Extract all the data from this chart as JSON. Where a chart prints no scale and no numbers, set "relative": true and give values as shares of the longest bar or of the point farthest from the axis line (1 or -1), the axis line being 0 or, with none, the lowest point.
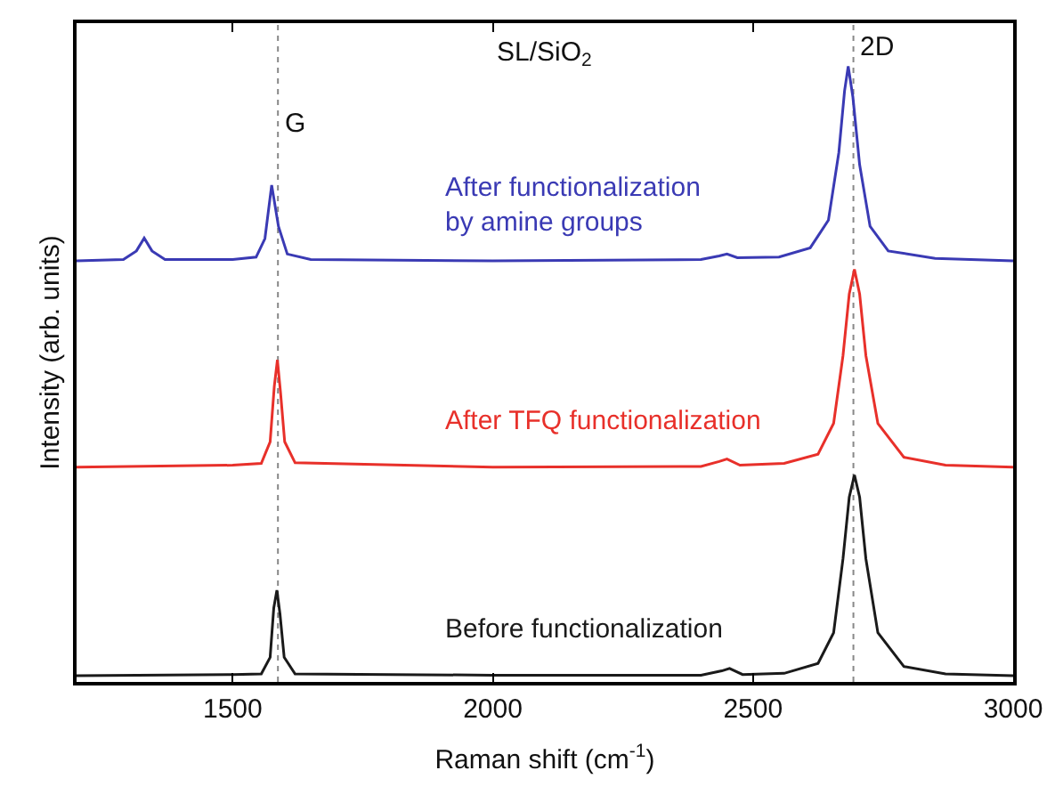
{
  "chart_data": {
    "type": "line",
    "relative": true,
    "xlabel": "Raman shift (cm$^{-1}$)",
    "ylabel": "Intensity (arb. units)",
    "xlim": [
      1200,
      3000
    ],
    "xticks": [
      1500,
      2000,
      2500,
      3000
    ],
    "grid": false,
    "legend": false,
    "marker": "none",
    "line_style": "solid",
    "annotations": [
      "SL/SiO$_{2}$",
      {
        "text": "G",
        "x": 1587,
        "y": 0.876
      },
      {
        "text": "2D",
        "x": 2693,
        "y": 1.0
      }
    ],
    "ref_lines": [
      {
        "axis": "x",
        "value": 1587,
        "color": "#888888",
        "line_style": "dotted"
      },
      {
        "axis": "x",
        "value": 2693,
        "color": "#888888",
        "line_style": "dotted"
      }
    ],
    "series": [
      {
        "name": "After functionalization\nby amine groups",
        "color": "#3a3ab4",
        "x": [
          1200,
          1290,
          1315,
          1330,
          1345,
          1370,
          1500,
          1545,
          1562,
          1575,
          1588,
          1605,
          1650,
          2000,
          2400,
          2435,
          2450,
          2470,
          2550,
          2610,
          2645,
          2665,
          2676,
          2683,
          2692,
          2705,
          2725,
          2760,
          2850,
          3000
        ],
        "values": [
          0.684,
          0.686,
          0.7,
          0.721,
          0.7,
          0.686,
          0.686,
          0.69,
          0.72,
          0.807,
          0.74,
          0.695,
          0.686,
          0.684,
          0.686,
          0.692,
          0.695,
          0.689,
          0.69,
          0.705,
          0.75,
          0.86,
          0.96,
          1.0,
          0.95,
          0.84,
          0.74,
          0.7,
          0.688,
          0.684
        ]
      },
      {
        "name": "After TFQ functionalization",
        "color": "#e8302a",
        "x": [
          1200,
          1500,
          1555,
          1572,
          1580,
          1586,
          1592,
          1600,
          1620,
          2000,
          2400,
          2435,
          2450,
          2475,
          2560,
          2625,
          2655,
          2673,
          2685,
          2695,
          2705,
          2717,
          2740,
          2790,
          2870,
          3000
        ],
        "values": [
          0.349,
          0.352,
          0.355,
          0.39,
          0.48,
          0.523,
          0.47,
          0.39,
          0.356,
          0.349,
          0.35,
          0.358,
          0.362,
          0.352,
          0.355,
          0.37,
          0.42,
          0.53,
          0.63,
          0.67,
          0.63,
          0.53,
          0.42,
          0.365,
          0.352,
          0.349
        ]
      },
      {
        "name": "Before functionalization",
        "color": "#1a1a1a",
        "x": [
          1200,
          1500,
          1555,
          1572,
          1579,
          1585,
          1591,
          1599,
          1620,
          2000,
          2400,
          2440,
          2455,
          2480,
          2560,
          2625,
          2655,
          2673,
          2685,
          2695,
          2705,
          2717,
          2740,
          2790,
          2870,
          3000
        ],
        "values": [
          0.01,
          0.012,
          0.013,
          0.04,
          0.12,
          0.149,
          0.11,
          0.04,
          0.013,
          0.011,
          0.011,
          0.018,
          0.022,
          0.012,
          0.014,
          0.03,
          0.08,
          0.2,
          0.3,
          0.336,
          0.3,
          0.2,
          0.08,
          0.025,
          0.013,
          0.01
        ]
      }
    ]
  }
}
